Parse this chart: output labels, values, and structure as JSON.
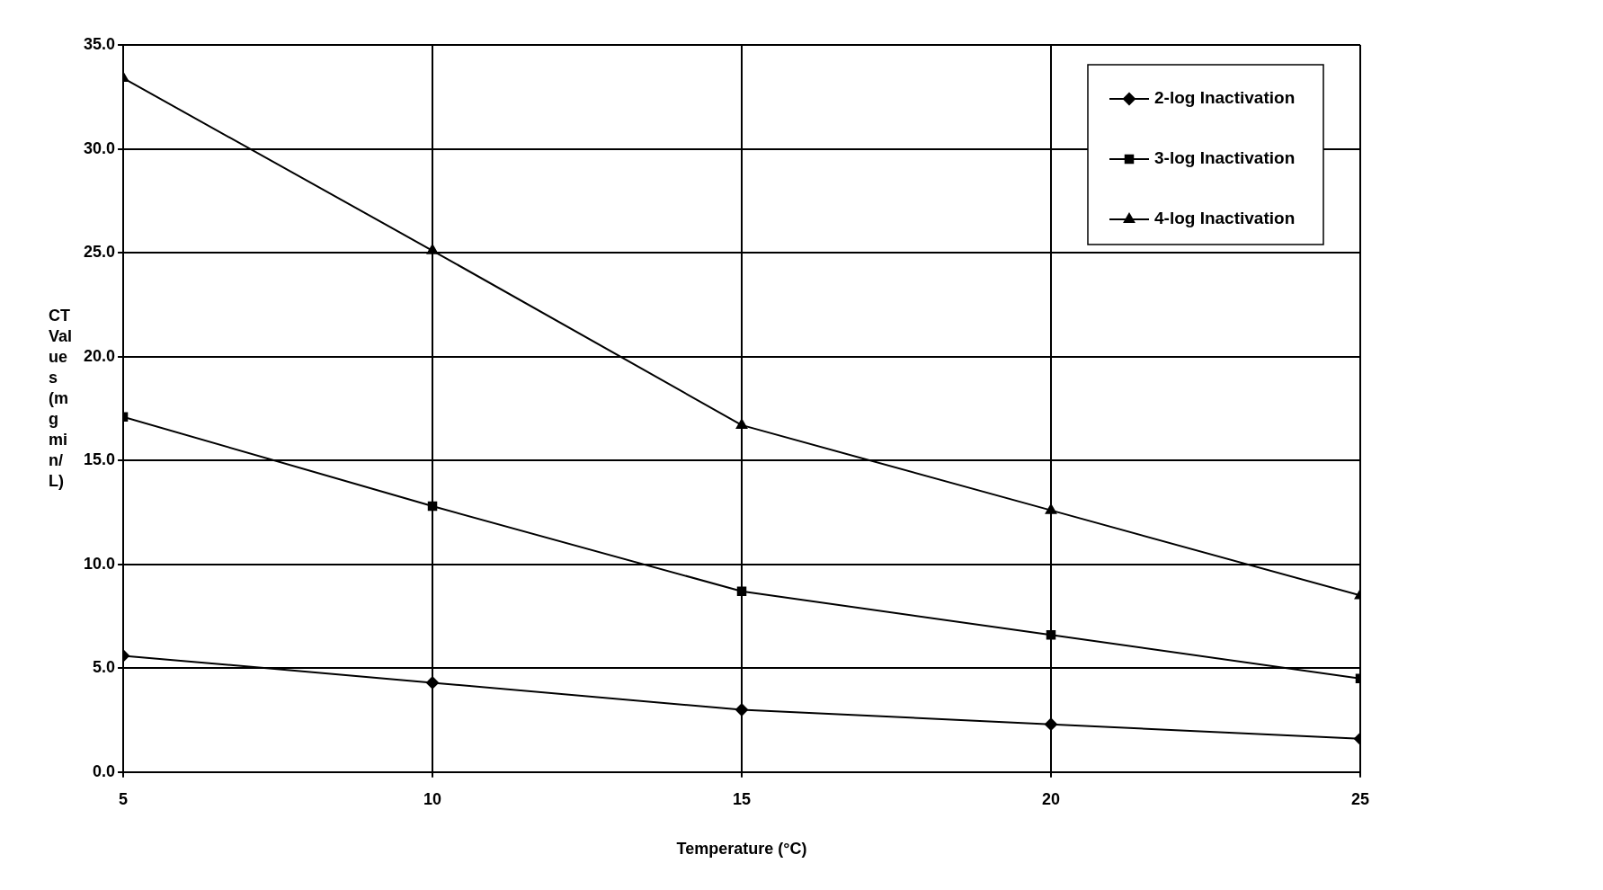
{
  "chart_data": {
    "type": "line",
    "xlabel": "Temperature (°C)",
    "ylabel": "CT Values (mg min/L)",
    "x": [
      5,
      10,
      15,
      20,
      25
    ],
    "xlim": [
      5,
      25
    ],
    "xticks": [
      5,
      10,
      15,
      20,
      25
    ],
    "ylim": [
      0,
      35
    ],
    "yticks": [
      {
        "value": 0,
        "label": "0.0"
      },
      {
        "value": 5,
        "label": "5.0"
      },
      {
        "value": 10,
        "label": "10.0"
      },
      {
        "value": 15,
        "label": "15.0"
      },
      {
        "value": 20,
        "label": "20.0"
      },
      {
        "value": 25,
        "label": "25.0"
      },
      {
        "value": 30,
        "label": "30.0"
      },
      {
        "value": 35,
        "label": "35.0"
      }
    ],
    "grid": true,
    "legend": "top right",
    "line_style": "solid",
    "series": [
      {
        "name": "2-log Inactivation",
        "color": "#000000",
        "marker": "diamond",
        "values": [
          5.6,
          4.3,
          3.0,
          2.3,
          1.6
        ]
      },
      {
        "name": "3-log Inactivation",
        "color": "#000000",
        "marker": "square",
        "values": [
          17.1,
          12.8,
          8.7,
          6.6,
          4.5
        ]
      },
      {
        "name": "4-log Inactivation",
        "color": "#000000",
        "marker": "triangle",
        "values": [
          33.4,
          25.1,
          16.7,
          12.6,
          8.5
        ]
      }
    ]
  }
}
